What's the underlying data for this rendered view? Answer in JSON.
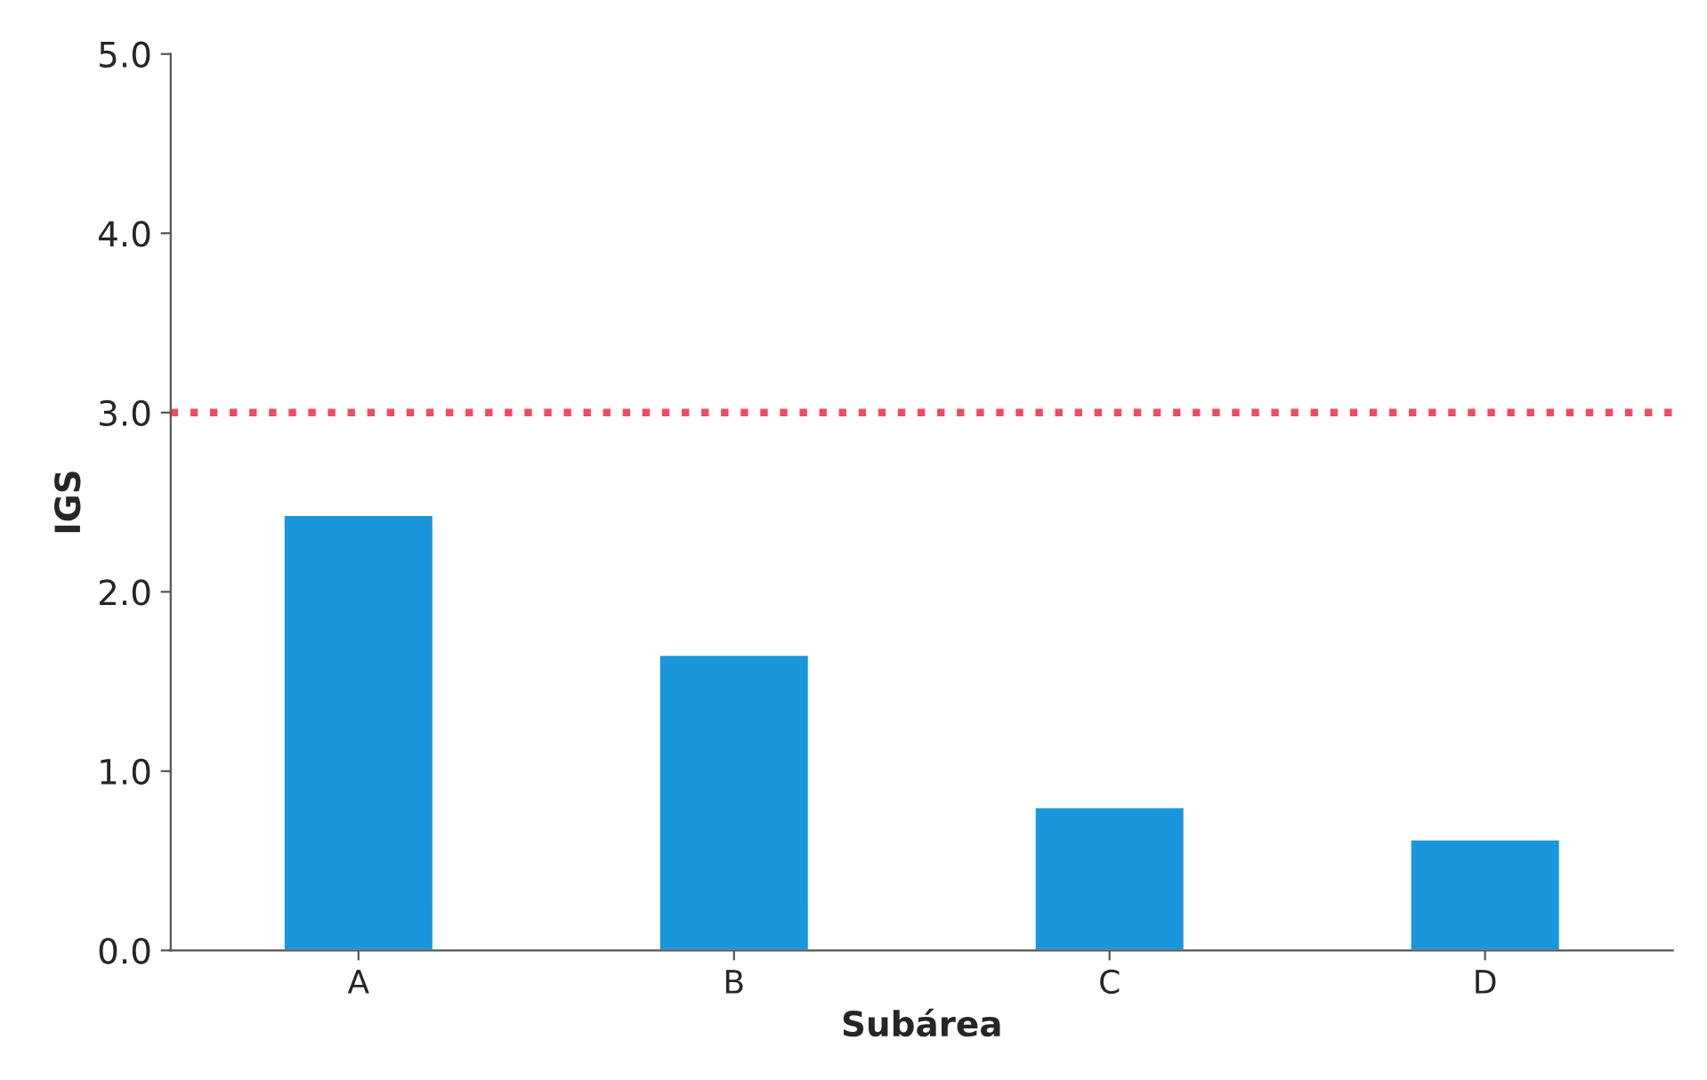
{
  "chart_data": {
    "type": "bar",
    "xlabel": "Subárea",
    "ylabel": "IGS",
    "categories": [
      "A",
      "B",
      "C",
      "D"
    ],
    "values": [
      2.43,
      1.65,
      0.8,
      0.62
    ],
    "color": "#1a96dc",
    "ylim": [
      0,
      5
    ],
    "yticks": [
      {
        "value": 0,
        "label": "0.0"
      },
      {
        "value": 1,
        "label": "1.0"
      },
      {
        "value": 2,
        "label": "2.0"
      },
      {
        "value": 3,
        "label": "3.0"
      },
      {
        "value": 4,
        "label": "4.0"
      },
      {
        "value": 5,
        "label": "5.0"
      }
    ],
    "ref_lines": [
      {
        "axis": "y",
        "value": 3,
        "color": "#f04a64",
        "line_style": "dotted"
      }
    ],
    "grid": false
  }
}
